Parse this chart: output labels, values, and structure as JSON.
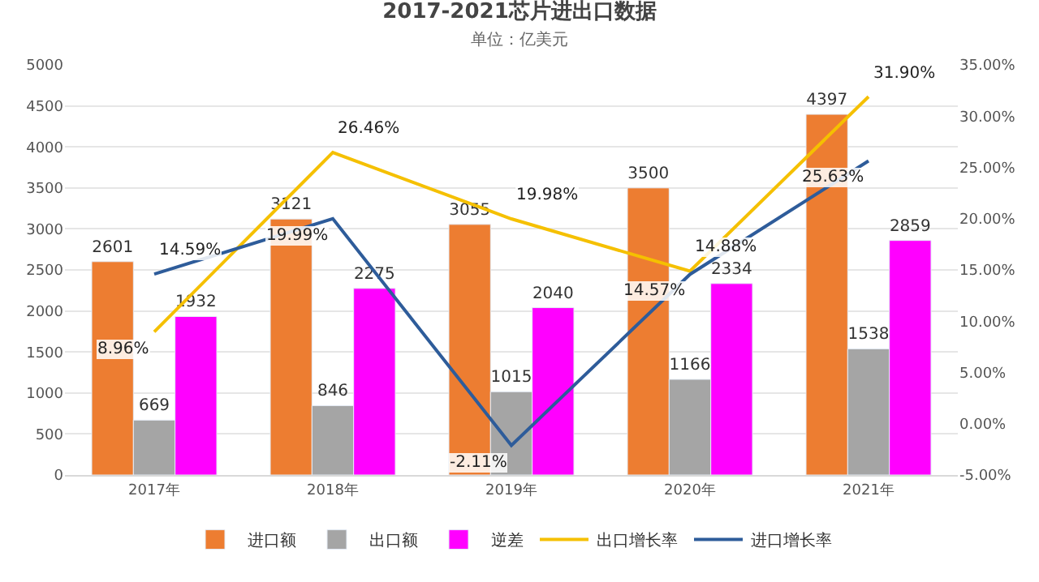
{
  "chart_data": {
    "type": "bar",
    "title": "2017-2021芯片进出口数据",
    "subtitle": "单位：亿美元",
    "categories": [
      "2017年",
      "2018年",
      "2019年",
      "2020年",
      "2021年"
    ],
    "series": [
      {
        "name": "进口额",
        "color": "#ed7d31",
        "values": [
          2601,
          3121,
          3055,
          3500,
          4397
        ]
      },
      {
        "name": "出口额",
        "color": "#a5a5a5",
        "values": [
          669,
          846,
          1015,
          1166,
          1538
        ]
      },
      {
        "name": "逆差",
        "color": "#ff00ff",
        "values": [
          1932,
          2275,
          2040,
          2334,
          2859
        ]
      },
      {
        "name": "出口增长率",
        "type": "line",
        "axis": "y2",
        "color": "#f5c000",
        "values": [
          8.96,
          26.46,
          19.98,
          14.88,
          31.9
        ],
        "value_labels": [
          "8.96%",
          "26.46%",
          "19.98%",
          "14.88%",
          "31.90%"
        ]
      },
      {
        "name": "进口增长率",
        "type": "line",
        "axis": "y2",
        "color": "#2e5c9a",
        "values": [
          14.59,
          19.99,
          -2.11,
          14.57,
          25.63
        ],
        "value_labels": [
          "14.59%",
          "19.99%",
          "-2.11%",
          "14.57%",
          "25.63%"
        ]
      }
    ],
    "ylim": [
      0,
      5000
    ],
    "yticks": [
      0,
      500,
      1000,
      1500,
      2000,
      2500,
      3000,
      3500,
      4000,
      4500,
      5000
    ],
    "y2lim": [
      -5,
      35
    ],
    "y2ticks": [
      {
        "value": -5,
        "label": "-5.00%"
      },
      {
        "value": 0,
        "label": "0.00%"
      },
      {
        "value": 5,
        "label": "5.00%"
      },
      {
        "value": 10,
        "label": "10.00%"
      },
      {
        "value": 15,
        "label": "15.00%"
      },
      {
        "value": 20,
        "label": "20.00%"
      },
      {
        "value": 25,
        "label": "25.00%"
      },
      {
        "value": 30,
        "label": "30.00%"
      },
      {
        "value": 35,
        "label": "35.00%"
      }
    ],
    "data_labels": true,
    "grid": "y",
    "legend": "bottom",
    "marker": "none",
    "line_style": "solid"
  }
}
